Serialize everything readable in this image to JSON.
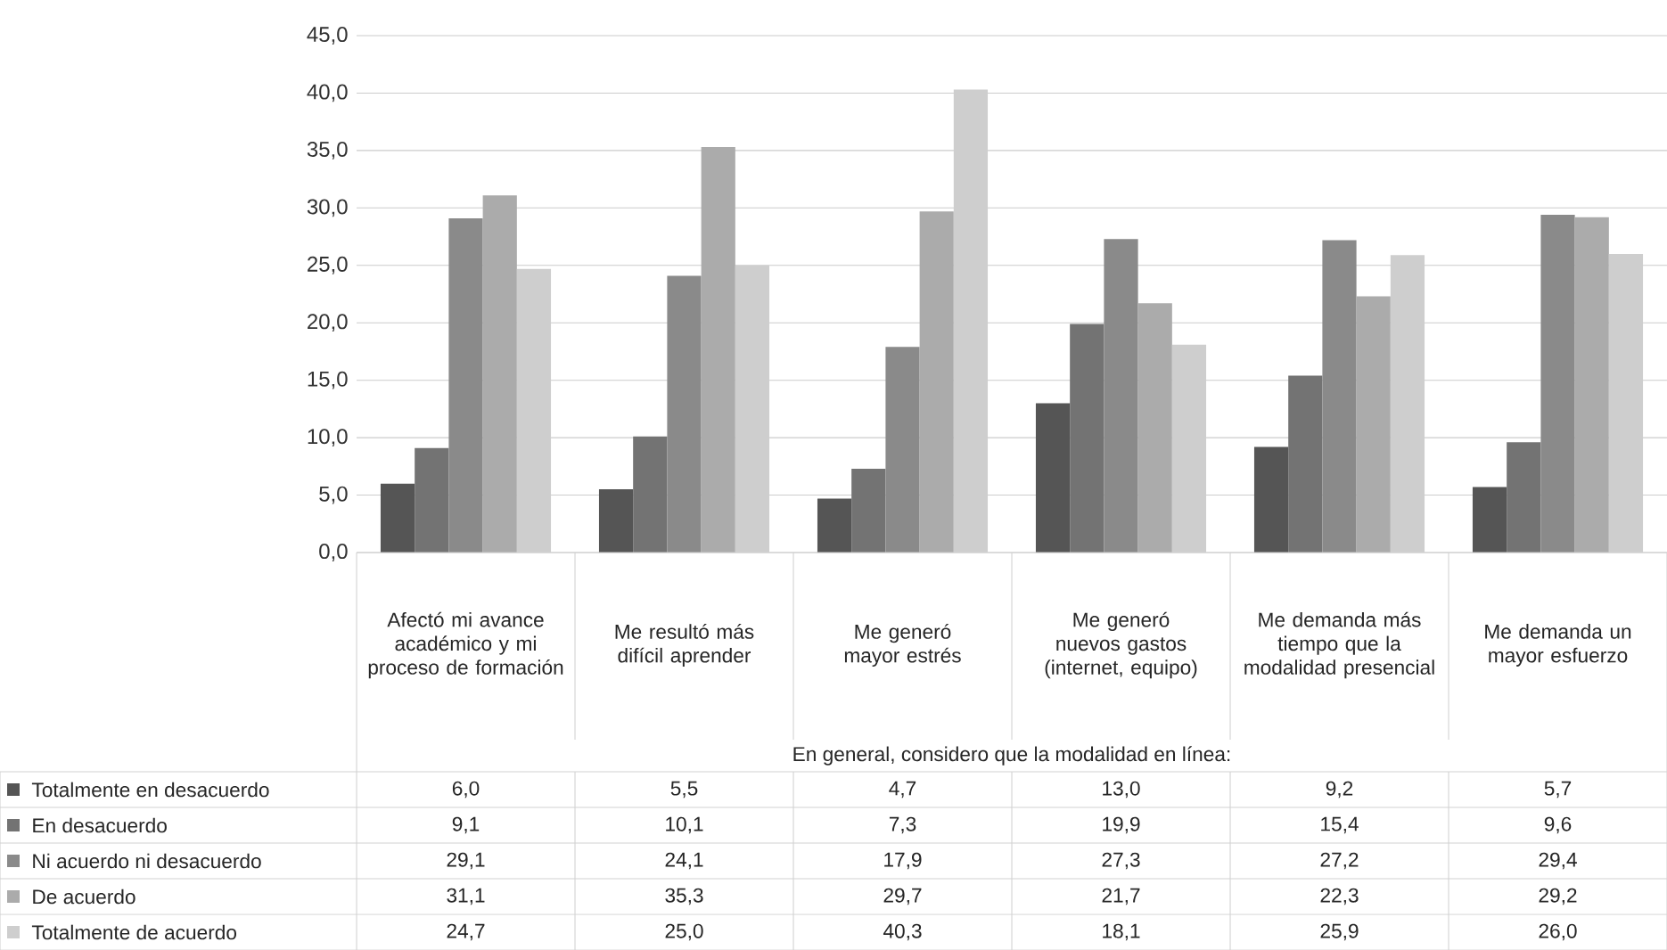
{
  "chart_data": {
    "type": "bar",
    "xlabel": "En general, considero que la modalidad en línea:",
    "categories": [
      "Afectó mi avance académico y mi proceso de formación",
      "Me resultó más difícil aprender",
      "Me generó mayor estrés",
      "Me generó nuevos gastos (internet, equipo)",
      "Me demanda más tiempo que la modalidad presencial",
      "Me demanda un mayor esfuerzo"
    ],
    "series": [
      {
        "name": "Totalmente en desacuerdo",
        "color": "#555555",
        "values": [
          6.0,
          5.5,
          4.7,
          13.0,
          9.2,
          5.7
        ],
        "value_labels": [
          "6,0",
          "5,5",
          "4,7",
          "13,0",
          "9,2",
          "5,7"
        ]
      },
      {
        "name": "En desacuerdo",
        "color": "#737373",
        "values": [
          9.1,
          10.1,
          7.3,
          19.9,
          15.4,
          9.6
        ],
        "value_labels": [
          "9,1",
          "10,1",
          "7,3",
          "19,9",
          "15,4",
          "9,6"
        ]
      },
      {
        "name": "Ni acuerdo ni desacuerdo",
        "color": "#8a8a8a",
        "values": [
          29.1,
          24.1,
          17.9,
          27.3,
          27.2,
          29.4
        ],
        "value_labels": [
          "29,1",
          "24,1",
          "17,9",
          "27,3",
          "27,2",
          "29,4"
        ]
      },
      {
        "name": "De acuerdo",
        "color": "#ababab",
        "values": [
          31.1,
          35.3,
          29.7,
          21.7,
          22.3,
          29.2
        ],
        "value_labels": [
          "31,1",
          "35,3",
          "29,7",
          "21,7",
          "22,3",
          "29,2"
        ]
      },
      {
        "name": "Totalmente de acuerdo",
        "color": "#cecece",
        "values": [
          24.7,
          25.0,
          40.3,
          18.1,
          25.9,
          26.0
        ],
        "value_labels": [
          "24,7",
          "25,0",
          "40,3",
          "18,1",
          "25,9",
          "26,0"
        ]
      }
    ],
    "ylim": [
      0,
      45
    ],
    "yticks": [
      {
        "value": 0,
        "label": "0,0"
      },
      {
        "value": 5,
        "label": "5,0"
      },
      {
        "value": 10,
        "label": "10,0"
      },
      {
        "value": 15,
        "label": "15,0"
      },
      {
        "value": 20,
        "label": "20,0"
      },
      {
        "value": 25,
        "label": "25,0"
      },
      {
        "value": 30,
        "label": "30,0"
      },
      {
        "value": 35,
        "label": "35,0"
      },
      {
        "value": 40,
        "label": "40,0"
      },
      {
        "value": 45,
        "label": "45,0"
      }
    ],
    "grid": "y",
    "legend": "bottom"
  }
}
